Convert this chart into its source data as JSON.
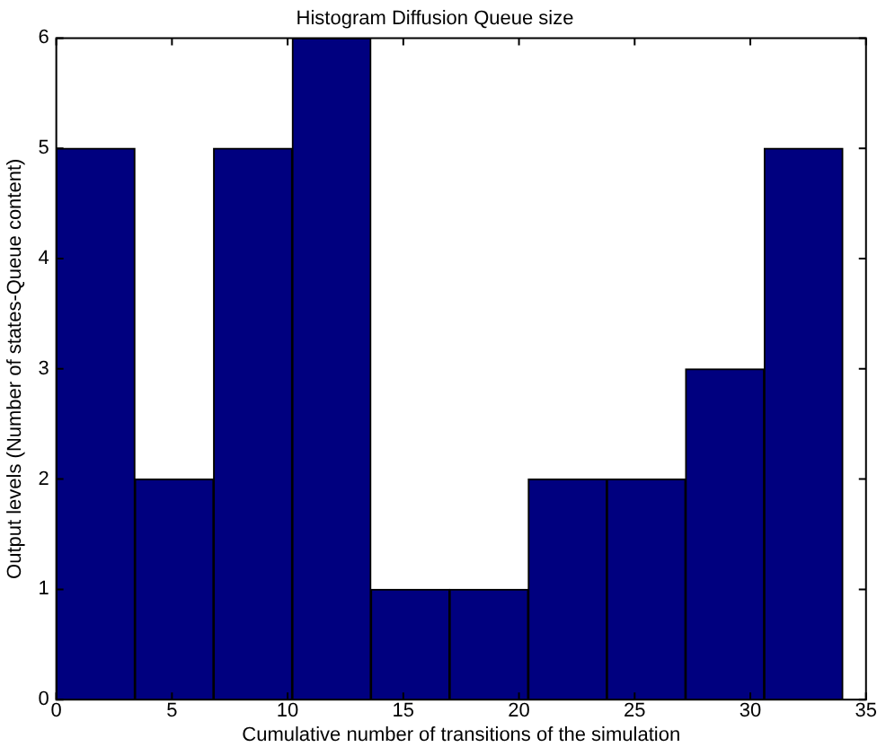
{
  "chart_data": {
    "type": "histogram",
    "title": "Histogram Diffusion Queue size",
    "xlabel": "Cumulative number of transitions of the simulation",
    "ylabel": "Output levels (Number of states-Queue content)",
    "bins": [
      0,
      3.4,
      6.8,
      10.2,
      13.6,
      17,
      20.4,
      23.8,
      27.2,
      30.6,
      34
    ],
    "values": [
      5,
      2,
      5,
      6,
      1,
      1,
      2,
      2,
      3,
      5
    ],
    "color": "#00007f",
    "xlim": [
      0,
      35
    ],
    "xticks": [
      0,
      5,
      10,
      15,
      20,
      25,
      30,
      35
    ],
    "ylim": [
      0,
      6
    ],
    "yticks": [
      0,
      1,
      2,
      3,
      4,
      5,
      6
    ],
    "grid": false,
    "legend": false
  }
}
